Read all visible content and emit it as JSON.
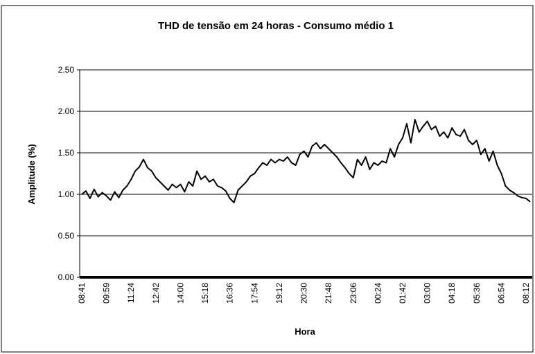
{
  "chart_data": {
    "type": "line",
    "title": "THD de tensão em 24 horas - Consumo médio 1",
    "y_label": "Amplitude (%)",
    "x_label": "Hora",
    "categories": [
      "08:41",
      null,
      null,
      null,
      null,
      null,
      "09:59",
      null,
      null,
      null,
      null,
      null,
      "11:24",
      null,
      null,
      null,
      null,
      null,
      "12:42",
      null,
      null,
      null,
      null,
      null,
      "14:00",
      null,
      null,
      null,
      null,
      null,
      "15:18",
      null,
      null,
      null,
      null,
      null,
      "16:36",
      null,
      null,
      null,
      null,
      null,
      "17:54",
      null,
      null,
      null,
      null,
      null,
      "19:12",
      null,
      null,
      null,
      null,
      null,
      "20:30",
      null,
      null,
      null,
      null,
      null,
      "21:48",
      null,
      null,
      null,
      null,
      null,
      "23:06",
      null,
      null,
      null,
      null,
      null,
      "00:24",
      null,
      null,
      null,
      null,
      null,
      "01:42",
      null,
      null,
      null,
      null,
      null,
      "03:00",
      null,
      null,
      null,
      null,
      null,
      "04:18",
      null,
      null,
      null,
      null,
      null,
      "05:36",
      null,
      null,
      null,
      null,
      null,
      "06:54",
      null,
      null,
      null,
      null,
      null,
      "08:12",
      null
    ],
    "values": [
      1.0,
      1.04,
      0.95,
      1.06,
      0.97,
      1.02,
      0.98,
      0.93,
      1.03,
      0.96,
      1.05,
      1.1,
      1.18,
      1.28,
      1.33,
      1.42,
      1.32,
      1.28,
      1.2,
      1.15,
      1.1,
      1.05,
      1.12,
      1.08,
      1.12,
      1.03,
      1.15,
      1.1,
      1.28,
      1.18,
      1.22,
      1.15,
      1.18,
      1.1,
      1.08,
      1.04,
      0.95,
      0.9,
      1.05,
      1.1,
      1.15,
      1.22,
      1.25,
      1.32,
      1.38,
      1.35,
      1.42,
      1.38,
      1.42,
      1.4,
      1.45,
      1.38,
      1.35,
      1.48,
      1.52,
      1.45,
      1.58,
      1.62,
      1.55,
      1.6,
      1.55,
      1.5,
      1.45,
      1.38,
      1.32,
      1.25,
      1.2,
      1.42,
      1.35,
      1.45,
      1.3,
      1.38,
      1.35,
      1.4,
      1.38,
      1.55,
      1.45,
      1.6,
      1.68,
      1.85,
      1.62,
      1.9,
      1.75,
      1.82,
      1.88,
      1.78,
      1.82,
      1.7,
      1.75,
      1.68,
      1.8,
      1.72,
      1.7,
      1.78,
      1.65,
      1.6,
      1.65,
      1.48,
      1.55,
      1.4,
      1.52,
      1.35,
      1.25,
      1.1,
      1.05,
      1.02,
      0.98,
      0.96,
      0.95,
      0.91
    ],
    "color": "#000000",
    "ylim": [
      0,
      2.5
    ],
    "yticks": [
      {
        "value": 0,
        "label": "0.00"
      },
      {
        "value": 0.5,
        "label": "0.50"
      },
      {
        "value": 1,
        "label": "1.00"
      },
      {
        "value": 1.5,
        "label": "1.50"
      },
      {
        "value": 2,
        "label": "2.00"
      },
      {
        "value": 2.5,
        "label": "2.50"
      }
    ],
    "grid": true
  }
}
